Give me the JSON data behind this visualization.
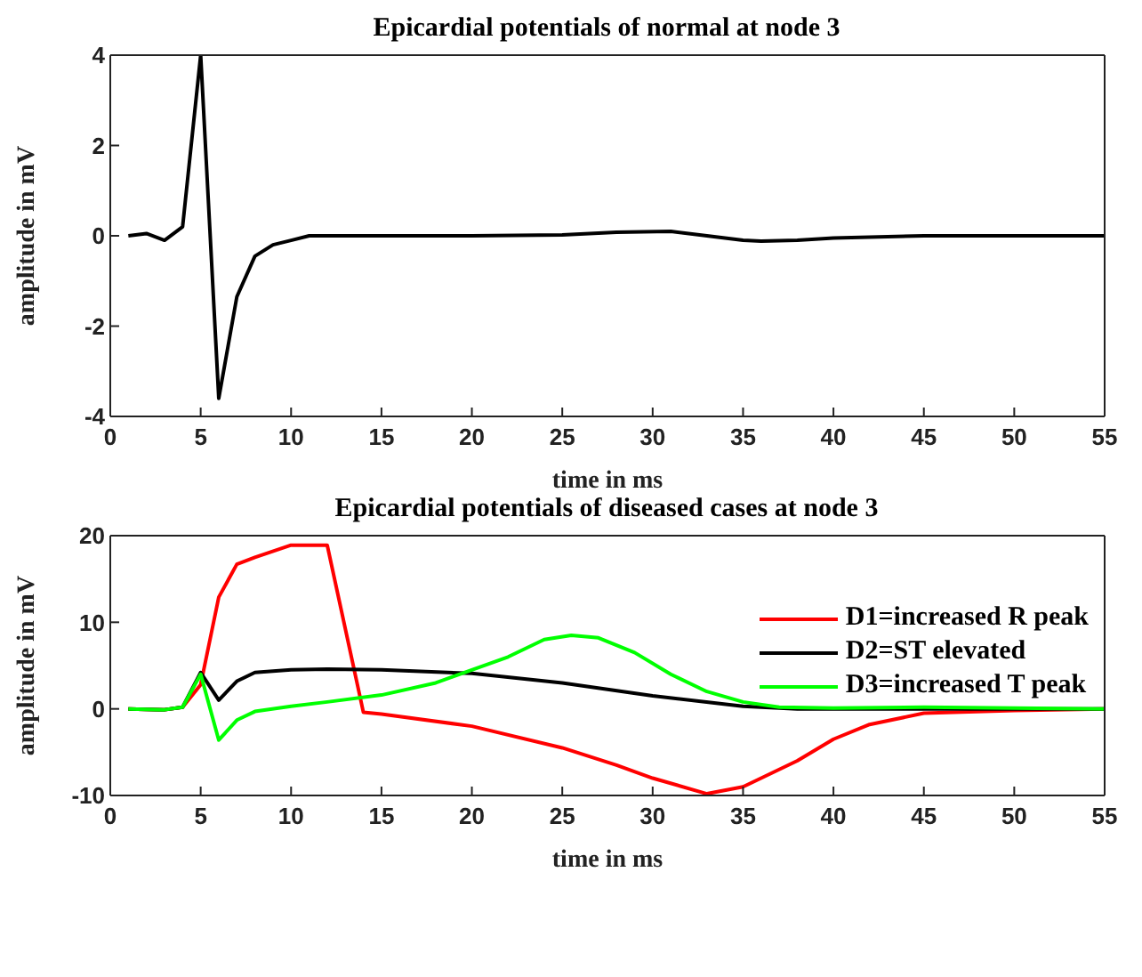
{
  "chart_data": [
    {
      "type": "line",
      "title": "Epicardial potentials of normal at node 3",
      "xlabel": "time in ms",
      "ylabel": "amplitude in mV",
      "xlim": [
        0,
        55
      ],
      "xticks": [
        0,
        5,
        10,
        15,
        20,
        25,
        30,
        35,
        40,
        45,
        50,
        55
      ],
      "ylim": [
        -4,
        4
      ],
      "yticks": [
        -4,
        -2,
        0,
        2,
        4
      ],
      "legend": false,
      "marker": "none",
      "series": [
        {
          "color": "#000000",
          "x": [
            1,
            2,
            3,
            4,
            5,
            6,
            7,
            8,
            9,
            10,
            11,
            15,
            20,
            25,
            28,
            31,
            33,
            35,
            36,
            38,
            40,
            45,
            50,
            55
          ],
          "values": [
            0,
            0.05,
            -0.1,
            0.2,
            4,
            -3.6,
            -1.35,
            -0.45,
            -0.2,
            -0.1,
            0,
            0,
            0,
            0.02,
            0.08,
            0.1,
            0,
            -0.1,
            -0.12,
            -0.1,
            -0.05,
            0,
            0,
            0
          ]
        }
      ]
    },
    {
      "type": "line",
      "title": "Epicardial potentials of diseased cases at node 3",
      "xlabel": "time in ms",
      "ylabel": "amplitude in mV",
      "xlim": [
        0,
        55
      ],
      "xticks": [
        0,
        5,
        10,
        15,
        20,
        25,
        30,
        35,
        40,
        45,
        50,
        55
      ],
      "ylim": [
        -10,
        20
      ],
      "yticks": [
        -10,
        0,
        10,
        20
      ],
      "legend": "top right",
      "marker": "none",
      "series": [
        {
          "name": "D1=increased R peak",
          "color": "#ff0000",
          "x": [
            1,
            3,
            4,
            5,
            6,
            7,
            8,
            10,
            12,
            14,
            15,
            20,
            25,
            28,
            30,
            33,
            35,
            38,
            40,
            42,
            45,
            50,
            55
          ],
          "values": [
            0,
            -0.1,
            0.2,
            2.8,
            12.9,
            16.7,
            17.5,
            18.9,
            18.9,
            -0.4,
            -0.6,
            -2,
            -4.5,
            -6.5,
            -8,
            -9.8,
            -9,
            -6,
            -3.5,
            -1.8,
            -0.5,
            -0.2,
            0
          ]
        },
        {
          "name": "D2=ST elevated",
          "color": "#000000",
          "x": [
            1,
            3,
            4,
            5,
            6,
            7,
            8,
            10,
            12,
            15,
            20,
            25,
            30,
            35,
            38,
            55
          ],
          "values": [
            0,
            -0.1,
            0.2,
            4.2,
            1,
            3.2,
            4.2,
            4.5,
            4.6,
            4.5,
            4.1,
            3,
            1.5,
            0.3,
            0,
            0
          ]
        },
        {
          "name": "D3=increased T peak",
          "color": "#00ff00",
          "x": [
            1,
            3,
            4,
            5,
            6,
            7,
            8,
            10,
            12,
            15,
            18,
            20,
            22,
            24,
            25.5,
            27,
            29,
            31,
            33,
            35,
            37,
            40,
            45,
            55
          ],
          "values": [
            0,
            -0.1,
            0.2,
            4,
            -3.6,
            -1.3,
            -0.3,
            0.3,
            0.8,
            1.6,
            3,
            4.5,
            6,
            8,
            8.5,
            8.2,
            6.5,
            4,
            2,
            0.8,
            0.2,
            0.1,
            0.2,
            0
          ]
        }
      ]
    }
  ]
}
